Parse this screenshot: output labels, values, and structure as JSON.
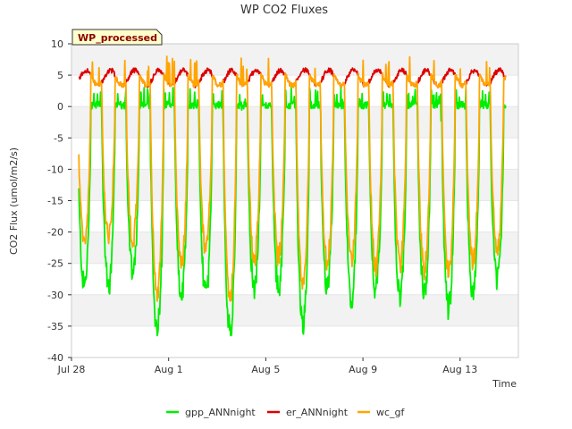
{
  "chart_data": {
    "type": "line",
    "title": "WP CO2 Fluxes",
    "badge": "WP_processed",
    "xlabel": "Time",
    "ylabel": "CO2 Flux (umol/m2/s)",
    "xlim": [
      0,
      18.4
    ],
    "ylim": [
      -40,
      10
    ],
    "yticks": [
      10,
      5,
      0,
      -5,
      -10,
      -15,
      -20,
      -25,
      -30,
      -35,
      -40
    ],
    "xticks": [
      {
        "label": "Jul 28",
        "day": 0
      },
      {
        "label": "Aug 1",
        "day": 4
      },
      {
        "label": "Aug 5",
        "day": 8
      },
      {
        "label": "Aug 9",
        "day": 12
      },
      {
        "label": "Aug 13",
        "day": 16
      }
    ],
    "data_range_days": [
      0.3,
      17.9
    ],
    "daily_min": {
      "gpp_ANNnight": [
        -28.5,
        -28.5,
        -26.5,
        -35.5,
        -30.5,
        -30.0,
        -36.5,
        -29.0,
        -29.0,
        -35.0,
        -28.5,
        -30.5,
        -29.0,
        -30.5,
        -30.0,
        -32.0,
        -29.5,
        -27.5
      ],
      "wc_gf": [
        -22.0,
        -21.0,
        -21.5,
        -30.0,
        -25.5,
        -23.0,
        -31.0,
        -24.5,
        -24.0,
        -29.0,
        -25.0,
        -24.5,
        -25.5,
        -25.5,
        -26.0,
        -26.5,
        -25.0,
        -23.0
      ]
    },
    "series": [
      {
        "name": "gpp_ANNnight",
        "color": "#00ee00",
        "range": "0 to -36.5",
        "typical_day_max": 1,
        "night": 0
      },
      {
        "name": "er_ANNnight",
        "color": "#dd0000",
        "range": "3 to 6.5",
        "typical_day_max": 6,
        "night": 4
      },
      {
        "name": "wc_gf",
        "color": "#ffa500",
        "range": "-31 to 8",
        "typical_day_max": 5,
        "night": 4
      }
    ]
  }
}
